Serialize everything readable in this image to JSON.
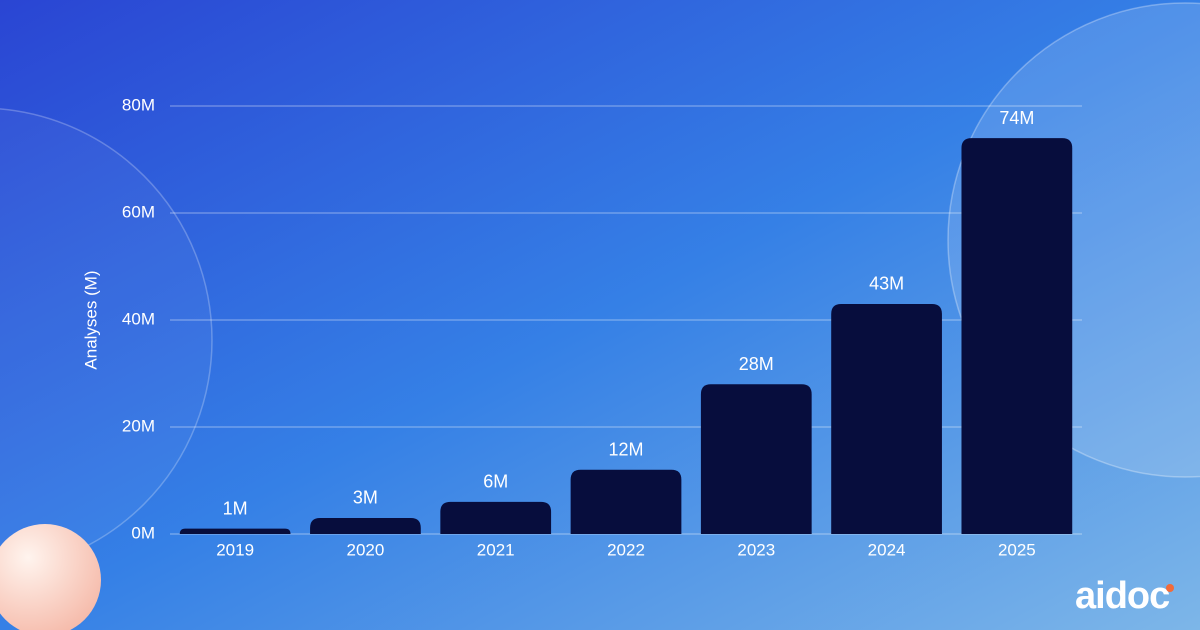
{
  "chart_data": {
    "type": "bar",
    "y_label": "Analyses (M)",
    "categories": [
      "2019",
      "2020",
      "2021",
      "2022",
      "2023",
      "2024",
      "2025"
    ],
    "values": [
      1,
      3,
      6,
      12,
      28,
      43,
      74
    ],
    "value_labels": [
      "1M",
      "3M",
      "6M",
      "12M",
      "28M",
      "43M",
      "74M"
    ],
    "color": "#070d3d",
    "ylim": [
      0,
      80
    ],
    "yticks": [
      {
        "value": 0,
        "label": "0M"
      },
      {
        "value": 20,
        "label": "20M"
      },
      {
        "value": 40,
        "label": "40M"
      },
      {
        "value": 60,
        "label": "60M"
      },
      {
        "value": 80,
        "label": "80M"
      }
    ],
    "grid": true
  },
  "brand": "aidoc"
}
